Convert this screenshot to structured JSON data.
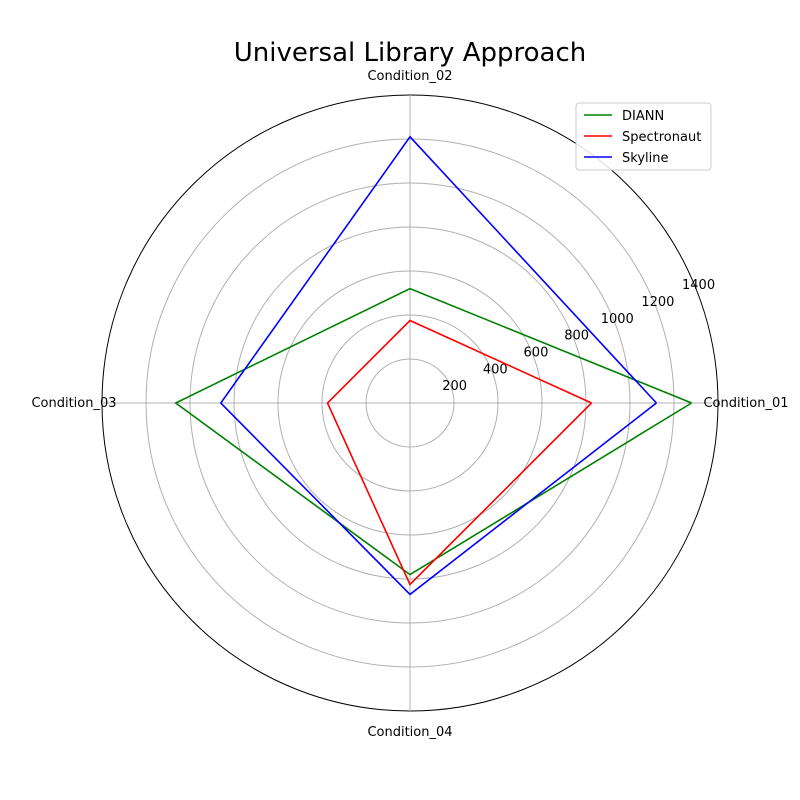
{
  "chart_data": {
    "type": "radar",
    "title": "Universal Library Approach",
    "categories": [
      "Condition_01",
      "Condition_02",
      "Condition_03",
      "Condition_04"
    ],
    "rlim": [
      0,
      1400
    ],
    "r_ticks": [
      200,
      400,
      600,
      800,
      1000,
      1200,
      1400
    ],
    "r_tick_labels": [
      "200",
      "400",
      "600",
      "800",
      "1000",
      "1200",
      "1400"
    ],
    "grid": true,
    "legend_position": "top-right",
    "series": [
      {
        "name": "DIANN",
        "color": "#008000",
        "values": [
          1280,
          520,
          1065,
          780
        ]
      },
      {
        "name": "Spectronaut",
        "color": "#ff0000",
        "values": [
          825,
          375,
          375,
          825
        ]
      },
      {
        "name": "Skyline",
        "color": "#0000ff",
        "values": [
          1120,
          1210,
          860,
          870
        ]
      }
    ]
  }
}
